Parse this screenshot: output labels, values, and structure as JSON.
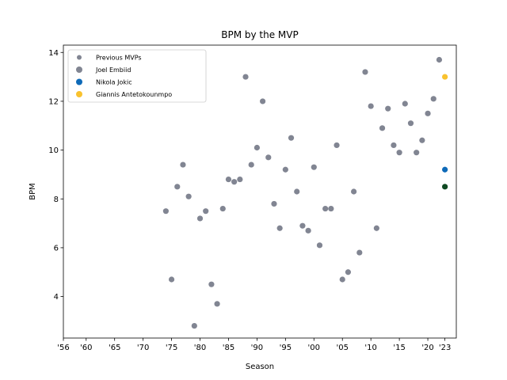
{
  "chart_data": {
    "type": "scatter",
    "title": "BPM by the MVP",
    "xlabel": "Season",
    "ylabel": "BPM",
    "xlim": [
      1956,
      2025
    ],
    "ylim": [
      2.3,
      14.3
    ],
    "x_ticks": [
      {
        "value": 1956,
        "label": "'56"
      },
      {
        "value": 1960,
        "label": "'60"
      },
      {
        "value": 1965,
        "label": "'65"
      },
      {
        "value": 1970,
        "label": "'70"
      },
      {
        "value": 1975,
        "label": "'75"
      },
      {
        "value": 1980,
        "label": "'80"
      },
      {
        "value": 1985,
        "label": "'85"
      },
      {
        "value": 1990,
        "label": "'90"
      },
      {
        "value": 1995,
        "label": "'95"
      },
      {
        "value": 2000,
        "label": "'00"
      },
      {
        "value": 2005,
        "label": "'05"
      },
      {
        "value": 2010,
        "label": "'10"
      },
      {
        "value": 2015,
        "label": "'15"
      },
      {
        "value": 2020,
        "label": "'20"
      },
      {
        "value": 2023,
        "label": "'23"
      }
    ],
    "y_ticks": [
      {
        "value": 4,
        "label": "4"
      },
      {
        "value": 6,
        "label": "6"
      },
      {
        "value": 8,
        "label": "8"
      },
      {
        "value": 10,
        "label": "10"
      },
      {
        "value": 12,
        "label": "12"
      },
      {
        "value": 14,
        "label": "14"
      }
    ],
    "grid": false,
    "legend_position": "top-left",
    "series": [
      {
        "name": "Previous MVPs",
        "color": "#818592",
        "points": [
          [
            1974,
            7.5
          ],
          [
            1975,
            4.7
          ],
          [
            1976,
            8.5
          ],
          [
            1977,
            9.4
          ],
          [
            1978,
            8.1
          ],
          [
            1979,
            2.8
          ],
          [
            1980,
            7.2
          ],
          [
            1981,
            7.5
          ],
          [
            1982,
            4.5
          ],
          [
            1983,
            3.7
          ],
          [
            1984,
            7.6
          ],
          [
            1985,
            8.8
          ],
          [
            1986,
            8.7
          ],
          [
            1987,
            8.8
          ],
          [
            1988,
            13.0
          ],
          [
            1989,
            9.4
          ],
          [
            1990,
            10.1
          ],
          [
            1991,
            12.0
          ],
          [
            1992,
            9.7
          ],
          [
            1993,
            7.8
          ],
          [
            1994,
            6.8
          ],
          [
            1995,
            9.2
          ],
          [
            1996,
            10.5
          ],
          [
            1997,
            8.3
          ],
          [
            1998,
            6.9
          ],
          [
            1999,
            6.7
          ],
          [
            2000,
            9.3
          ],
          [
            2001,
            6.1
          ],
          [
            2002,
            7.6
          ],
          [
            2003,
            7.6
          ],
          [
            2004,
            10.2
          ],
          [
            2005,
            4.7
          ],
          [
            2006,
            5.0
          ],
          [
            2007,
            8.3
          ],
          [
            2008,
            5.8
          ],
          [
            2009,
            13.2
          ],
          [
            2010,
            11.8
          ],
          [
            2011,
            6.8
          ],
          [
            2012,
            10.9
          ],
          [
            2013,
            11.7
          ],
          [
            2014,
            10.2
          ],
          [
            2015,
            9.9
          ],
          [
            2016,
            11.9
          ],
          [
            2017,
            11.1
          ],
          [
            2018,
            9.9
          ],
          [
            2019,
            10.4
          ],
          [
            2020,
            11.5
          ],
          [
            2021,
            12.1
          ],
          [
            2022,
            13.7
          ]
        ]
      },
      {
        "name": "Joel Embiid",
        "color": "#0f4a22",
        "legend_color": "#818592",
        "points": [
          [
            2023,
            8.5
          ]
        ]
      },
      {
        "name": "Nikola Jokic",
        "color": "#0e6ab8",
        "points": [
          [
            2023,
            9.2
          ]
        ]
      },
      {
        "name": "Giannis Antetokounmpo",
        "color": "#f9c22e",
        "points": [
          [
            2023,
            13.0
          ]
        ]
      }
    ]
  }
}
